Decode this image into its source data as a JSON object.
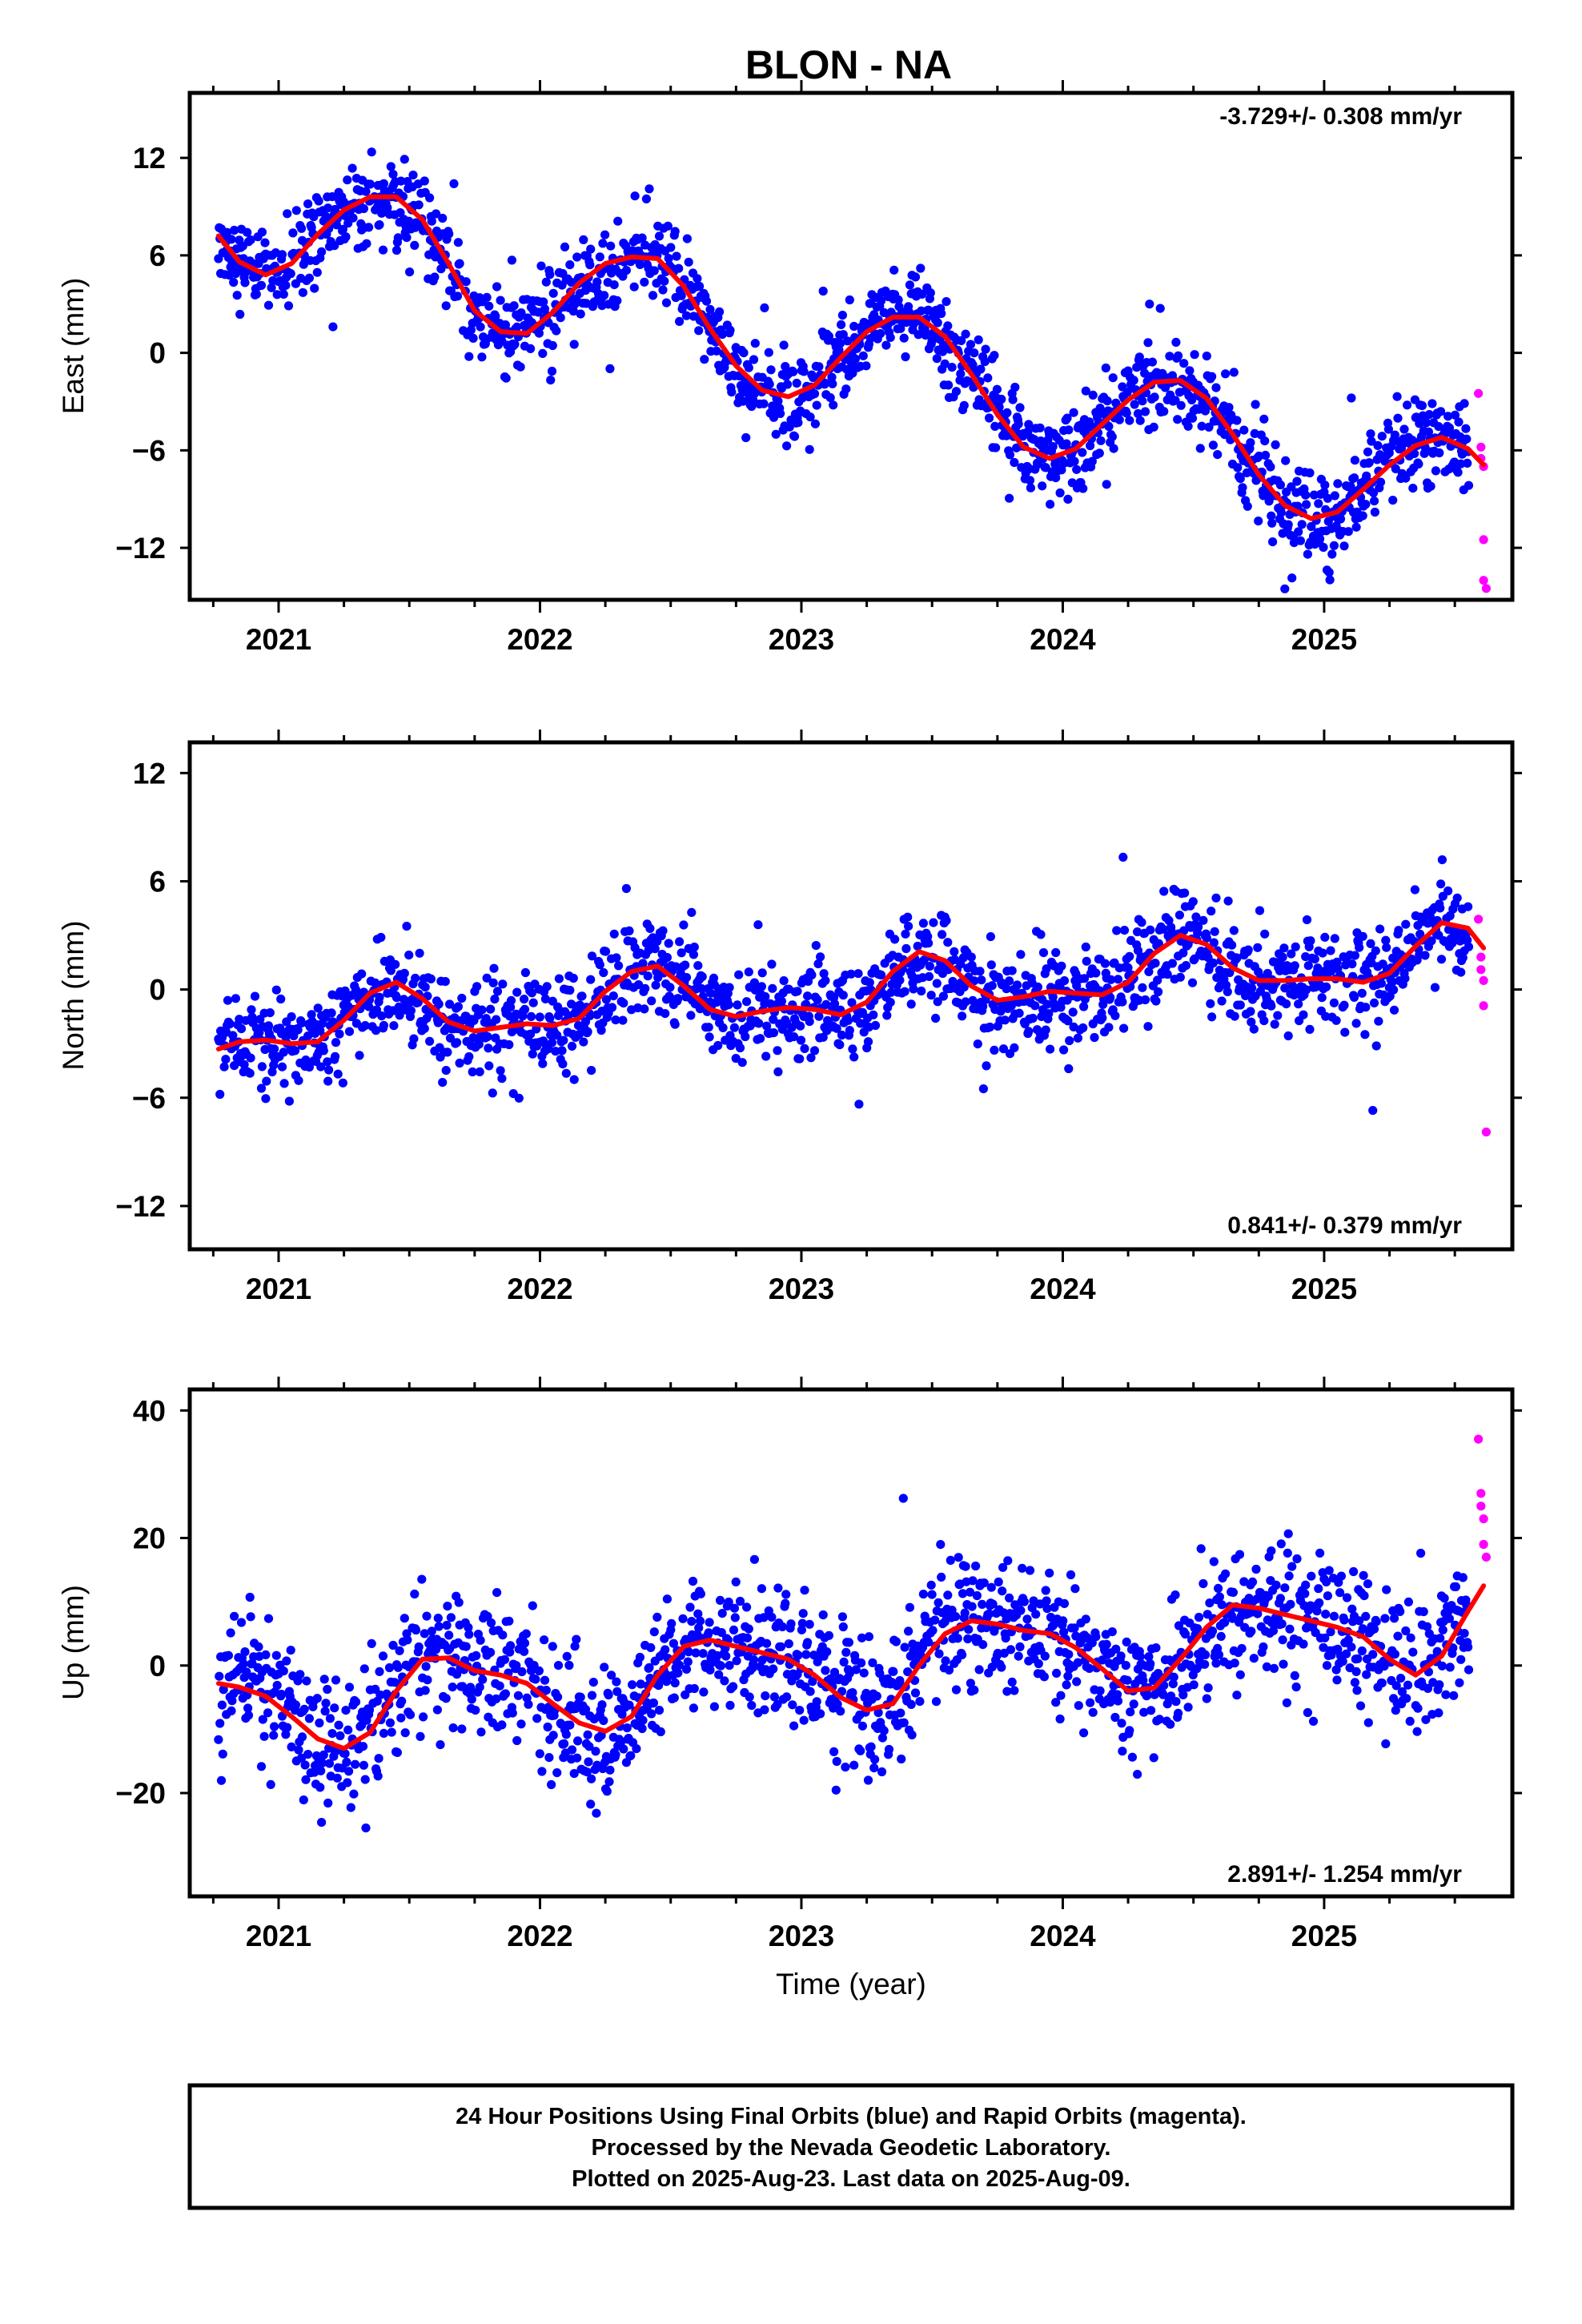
{
  "title": "BLON - NA",
  "xlabel": "Time (year)",
  "colors": {
    "final": "#0000ff",
    "rapid": "#ff00ff",
    "model": "#ff0000",
    "frame": "#000000"
  },
  "footer": {
    "line1": "24 Hour Positions Using Final Orbits (blue) and Rapid Orbits (magenta).",
    "line2": "Processed by the Nevada Geodetic Laboratory.",
    "line3": "Plotted on 2025-Aug-23. Last data on 2025-Aug-09."
  },
  "chart_data": [
    {
      "type": "scatter",
      "component": "east",
      "ylabel": "East (mm)",
      "rate_label": "-3.729+/- 0.308 mm/yr",
      "xlim": [
        2020.66,
        2025.72
      ],
      "ylim": [
        -15.2,
        16.0
      ],
      "xticks": [
        2021,
        2022,
        2023,
        2024,
        2025
      ],
      "xtick_labels": [
        "2021",
        "2022",
        "2023",
        "2024",
        "2025"
      ],
      "yticks": [
        -12,
        -6,
        0,
        6,
        12
      ],
      "ytick_labels": [
        "−12",
        "−6",
        "0",
        "6",
        "12"
      ],
      "model": {
        "x": [
          2020.77,
          2020.85,
          2020.95,
          2021.05,
          2021.15,
          2021.25,
          2021.35,
          2021.45,
          2021.55,
          2021.65,
          2021.75,
          2021.85,
          2021.95,
          2022.05,
          2022.15,
          2022.25,
          2022.35,
          2022.45,
          2022.55,
          2022.65,
          2022.75,
          2022.85,
          2022.95,
          2023.05,
          2023.15,
          2023.25,
          2023.35,
          2023.45,
          2023.55,
          2023.65,
          2023.75,
          2023.85,
          2023.95,
          2024.05,
          2024.15,
          2024.25,
          2024.35,
          2024.45,
          2024.55,
          2024.65,
          2024.75,
          2024.85,
          2024.95,
          2025.05,
          2025.15,
          2025.25,
          2025.35,
          2025.45,
          2025.55,
          2025.61
        ],
        "y": [
          7.2,
          5.6,
          4.8,
          5.5,
          7.3,
          8.8,
          9.6,
          9.6,
          8.2,
          5.5,
          2.6,
          1.3,
          1.2,
          2.5,
          4.3,
          5.5,
          5.9,
          5.8,
          4.1,
          1.5,
          -0.8,
          -2.3,
          -2.7,
          -2.0,
          -0.3,
          1.3,
          2.2,
          2.2,
          1.0,
          -1.3,
          -3.8,
          -5.8,
          -6.5,
          -5.9,
          -4.4,
          -2.9,
          -1.8,
          -1.7,
          -2.8,
          -5.0,
          -7.5,
          -9.4,
          -10.2,
          -9.8,
          -8.4,
          -6.9,
          -5.7,
          -5.2,
          -5.9,
          -6.9
        ]
      },
      "final_points_summary": "daily positions, scatter about model with ~1.3 mm spread, 2020.77 to 2025.55",
      "rapid_points": {
        "x": [
          2025.59,
          2025.6,
          2025.6,
          2025.61,
          2025.61,
          2025.61,
          2025.62
        ],
        "y": [
          -2.5,
          -5.8,
          -6.5,
          -7.0,
          -11.5,
          -14.0,
          -14.5
        ]
      }
    },
    {
      "type": "scatter",
      "component": "north",
      "ylabel": "North (mm)",
      "rate_label": "0.841+/- 0.379 mm/yr",
      "xlim": [
        2020.66,
        2025.72
      ],
      "ylim": [
        -14.4,
        13.7
      ],
      "xticks": [
        2021,
        2022,
        2023,
        2024,
        2025
      ],
      "xtick_labels": [
        "2021",
        "2022",
        "2023",
        "2024",
        "2025"
      ],
      "yticks": [
        -12,
        -6,
        0,
        6,
        12
      ],
      "ytick_labels": [
        "−12",
        "−6",
        "0",
        "6",
        "12"
      ],
      "model": {
        "x": [
          2020.77,
          2020.85,
          2020.95,
          2021.05,
          2021.15,
          2021.25,
          2021.35,
          2021.45,
          2021.55,
          2021.65,
          2021.75,
          2021.85,
          2021.95,
          2022.05,
          2022.15,
          2022.25,
          2022.35,
          2022.45,
          2022.55,
          2022.65,
          2022.75,
          2022.85,
          2022.95,
          2023.05,
          2023.15,
          2023.25,
          2023.35,
          2023.45,
          2023.55,
          2023.65,
          2023.75,
          2023.85,
          2023.95,
          2024.05,
          2024.15,
          2024.25,
          2024.35,
          2024.45,
          2024.55,
          2024.65,
          2024.75,
          2024.85,
          2024.95,
          2025.05,
          2025.15,
          2025.25,
          2025.35,
          2025.45,
          2025.55,
          2025.61
        ],
        "y": [
          -3.3,
          -2.9,
          -2.8,
          -3.0,
          -2.9,
          -1.7,
          -0.2,
          0.4,
          -0.5,
          -1.8,
          -2.3,
          -2.1,
          -1.9,
          -2.0,
          -1.6,
          -0.1,
          1.0,
          1.3,
          0.2,
          -1.1,
          -1.5,
          -1.2,
          -1.0,
          -1.1,
          -1.4,
          -0.7,
          1.0,
          2.1,
          1.6,
          0.2,
          -0.6,
          -0.4,
          -0.1,
          -0.2,
          -0.3,
          0.4,
          2.0,
          3.0,
          2.5,
          1.2,
          0.5,
          0.5,
          0.6,
          0.6,
          0.4,
          0.9,
          2.4,
          3.7,
          3.4,
          2.3
        ]
      },
      "final_points_summary": "daily positions, scatter about model with ~1.3 mm spread, 2020.77 to 2025.55",
      "rapid_points": {
        "x": [
          2025.59,
          2025.6,
          2025.6,
          2025.61,
          2025.61,
          2025.62
        ],
        "y": [
          3.9,
          1.8,
          1.1,
          0.5,
          -0.9,
          -7.9
        ]
      }
    },
    {
      "type": "scatter",
      "component": "up",
      "ylabel": "Up (mm)",
      "rate_label": "2.891+/- 1.254 mm/yr",
      "xlim": [
        2020.66,
        2025.72
      ],
      "ylim": [
        -36.2,
        43.3
      ],
      "xticks": [
        2021,
        2022,
        2023,
        2024,
        2025
      ],
      "xtick_labels": [
        "2021",
        "2022",
        "2023",
        "2024",
        "2025"
      ],
      "yticks": [
        -20,
        0,
        20,
        40
      ],
      "ytick_labels": [
        "−20",
        "0",
        "20",
        "40"
      ],
      "model": {
        "x": [
          2020.77,
          2020.85,
          2020.95,
          2021.05,
          2021.15,
          2021.25,
          2021.35,
          2021.45,
          2021.55,
          2021.65,
          2021.75,
          2021.85,
          2021.95,
          2022.05,
          2022.15,
          2022.25,
          2022.35,
          2022.45,
          2022.55,
          2022.65,
          2022.75,
          2022.85,
          2022.95,
          2023.05,
          2023.15,
          2023.25,
          2023.35,
          2023.45,
          2023.55,
          2023.65,
          2023.75,
          2023.85,
          2023.95,
          2024.05,
          2024.15,
          2024.25,
          2024.35,
          2024.45,
          2024.55,
          2024.65,
          2024.75,
          2024.85,
          2024.95,
          2025.05,
          2025.15,
          2025.25,
          2025.35,
          2025.45,
          2025.55,
          2025.61
        ],
        "y": [
          -2.8,
          -3.4,
          -4.8,
          -8.0,
          -11.5,
          -13.0,
          -10.5,
          -4.0,
          1.0,
          1.2,
          -0.8,
          -1.5,
          -2.8,
          -6.0,
          -9.0,
          -10.3,
          -8.0,
          -1.5,
          3.0,
          4.0,
          3.0,
          2.0,
          1.0,
          -1.5,
          -5.0,
          -7.0,
          -6.0,
          0.0,
          5.0,
          7.0,
          6.5,
          5.5,
          5.0,
          2.8,
          -0.5,
          -4.0,
          -3.5,
          1.0,
          6.0,
          9.5,
          9.0,
          8.0,
          7.0,
          6.0,
          4.5,
          1.0,
          -1.5,
          1.5,
          8.5,
          12.5
        ]
      },
      "final_points_summary": "daily positions, scatter about model with ~5 mm spread, 2020.77 to 2025.55",
      "rapid_points": {
        "x": [
          2025.59,
          2025.6,
          2025.6,
          2025.61,
          2025.61,
          2025.62
        ],
        "y": [
          35.5,
          27.0,
          25.0,
          23.0,
          19.0,
          17.0
        ]
      }
    }
  ]
}
